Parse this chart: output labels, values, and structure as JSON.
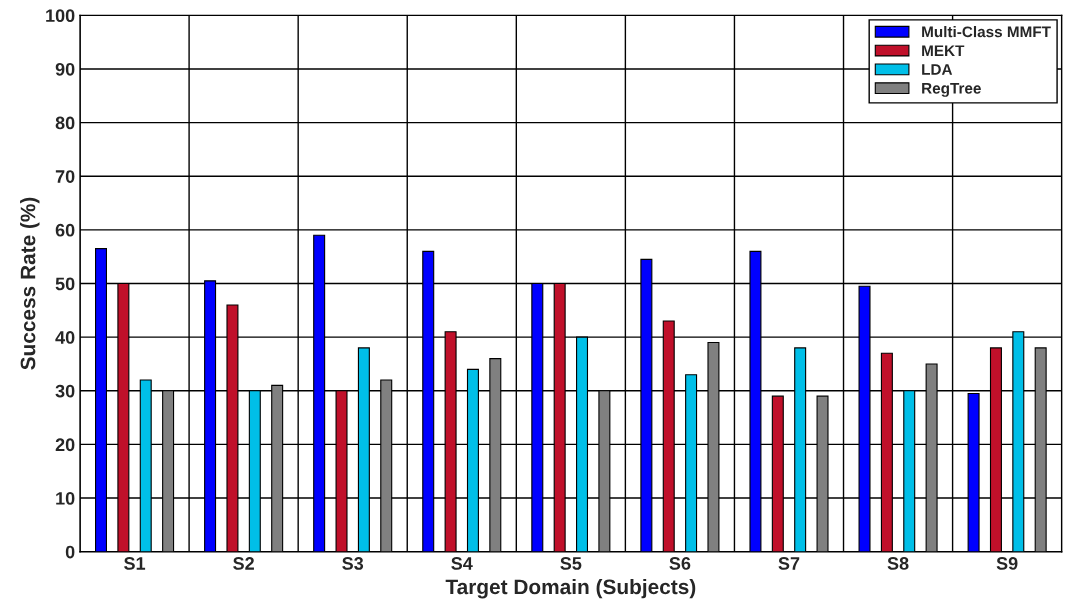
{
  "chart_data": {
    "type": "bar",
    "xlabel": "Target Domain (Subjects)",
    "ylabel": "Success Rate (%)",
    "categories": [
      "S1",
      "S2",
      "S3",
      "S4",
      "S5",
      "S6",
      "S7",
      "S8",
      "S9"
    ],
    "series": [
      {
        "name": "Multi-Class MMFT",
        "color": "#0000ff",
        "values": [
          56.5,
          50.5,
          59,
          56,
          50,
          54.5,
          56,
          49.5,
          29.5
        ]
      },
      {
        "name": "MEKT",
        "color": "#c0102a",
        "values": [
          50,
          46,
          30,
          41,
          50,
          43,
          29,
          37,
          38
        ]
      },
      {
        "name": "LDA",
        "color": "#00bfe8",
        "values": [
          32,
          30,
          38,
          34,
          40,
          33,
          38,
          30,
          41
        ]
      },
      {
        "name": "RegTree",
        "color": "#808080",
        "values": [
          30,
          31,
          32,
          36,
          30,
          39,
          29,
          35,
          38
        ]
      }
    ],
    "ylim": [
      0,
      100
    ],
    "yticks": [
      0,
      10,
      20,
      30,
      40,
      50,
      60,
      70,
      80,
      90,
      100
    ],
    "grid": true,
    "legend": "top right"
  }
}
